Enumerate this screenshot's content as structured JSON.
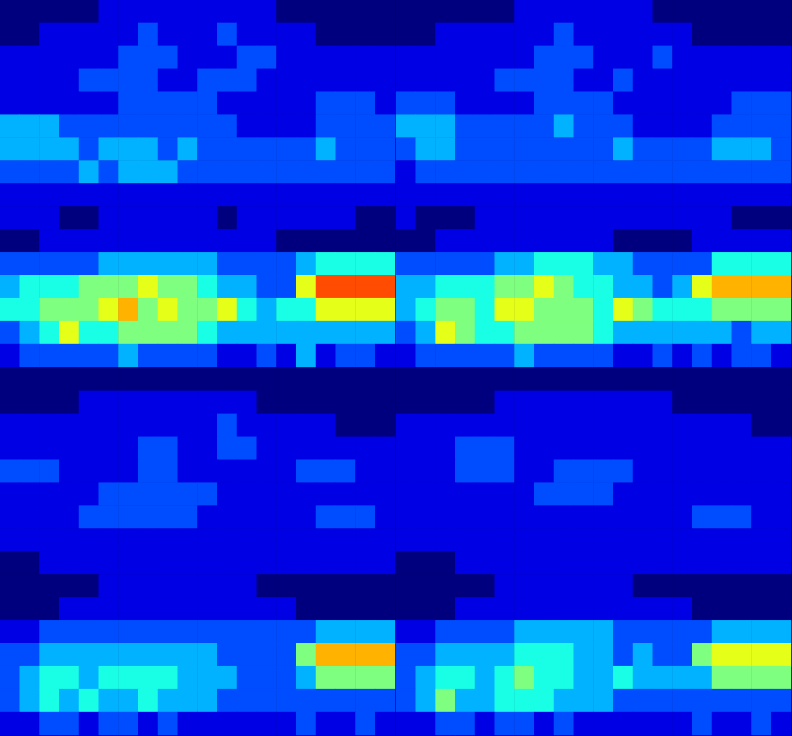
{
  "chart_data": [
    {
      "type": "heatmap",
      "tick_labels": false,
      "color_range": [
        0,
        10
      ],
      "cells": [
        [
          0,
          0,
          0,
          0,
          0,
          1,
          1,
          1,
          1,
          1,
          1,
          1,
          1,
          1,
          0,
          0,
          0,
          0,
          0,
          0
        ],
        [
          0,
          0,
          1,
          1,
          1,
          1,
          1,
          2,
          1,
          1,
          1,
          2,
          1,
          1,
          1,
          1,
          0,
          0,
          0,
          0
        ],
        [
          1,
          1,
          1,
          1,
          1,
          1,
          2,
          2,
          2,
          1,
          1,
          1,
          2,
          2,
          1,
          1,
          1,
          1,
          1,
          1
        ],
        [
          1,
          1,
          1,
          1,
          2,
          2,
          2,
          2,
          1,
          1,
          2,
          2,
          2,
          1,
          1,
          1,
          1,
          1,
          1,
          1
        ],
        [
          1,
          1,
          1,
          1,
          1,
          1,
          2,
          2,
          2,
          2,
          2,
          1,
          1,
          1,
          1,
          1,
          2,
          2,
          2,
          1
        ],
        [
          3,
          3,
          3,
          2,
          2,
          2,
          2,
          2,
          2,
          2,
          2,
          2,
          1,
          1,
          1,
          1,
          2,
          2,
          2,
          2
        ],
        [
          3,
          3,
          3,
          3,
          2,
          3,
          3,
          3,
          2,
          3,
          2,
          2,
          2,
          2,
          2,
          2,
          3,
          2,
          2,
          2
        ],
        [
          2,
          2,
          2,
          2,
          3,
          2,
          3,
          3,
          3,
          2,
          2,
          2,
          2,
          2,
          2,
          2,
          2,
          2,
          2,
          2
        ],
        [
          1,
          1,
          1,
          1,
          1,
          1,
          1,
          1,
          1,
          1,
          1,
          1,
          1,
          1,
          1,
          1,
          1,
          1,
          1,
          1
        ],
        [
          1,
          1,
          1,
          0,
          0,
          1,
          1,
          1,
          1,
          1,
          1,
          0,
          1,
          1,
          1,
          1,
          1,
          1,
          0,
          0
        ],
        [
          0,
          0,
          1,
          1,
          1,
          1,
          1,
          1,
          1,
          1,
          1,
          1,
          1,
          1,
          0,
          0,
          0,
          0,
          0,
          0
        ],
        [
          2,
          2,
          2,
          2,
          2,
          3,
          3,
          3,
          3,
          3,
          3,
          2,
          2,
          2,
          2,
          3,
          4,
          4,
          4,
          4
        ],
        [
          3,
          4,
          4,
          4,
          5,
          5,
          5,
          6,
          5,
          5,
          4,
          3,
          3,
          2,
          2,
          6,
          8,
          8,
          8,
          8
        ],
        [
          4,
          4,
          5,
          5,
          5,
          6,
          7,
          5,
          6,
          5,
          5,
          6,
          4,
          3,
          4,
          4,
          6,
          6,
          6,
          6
        ],
        [
          2,
          3,
          4,
          6,
          4,
          4,
          5,
          5,
          5,
          5,
          4,
          3,
          3,
          3,
          3,
          3,
          3,
          3,
          3,
          3
        ],
        [
          1,
          2,
          2,
          2,
          2,
          2,
          3,
          2,
          2,
          2,
          2,
          1,
          1,
          2,
          1,
          3,
          1,
          2,
          2,
          1
        ]
      ]
    },
    {
      "type": "heatmap",
      "tick_labels": false,
      "color_range": [
        0,
        10
      ],
      "cells": [
        [
          0,
          0,
          0,
          0,
          0,
          0,
          1,
          1,
          1,
          1,
          1,
          1,
          1,
          0,
          0,
          0,
          0,
          0,
          0,
          0
        ],
        [
          0,
          0,
          1,
          1,
          1,
          1,
          1,
          1,
          2,
          1,
          1,
          1,
          1,
          1,
          1,
          0,
          0,
          0,
          0,
          0
        ],
        [
          1,
          1,
          1,
          1,
          1,
          1,
          1,
          2,
          2,
          2,
          1,
          1,
          1,
          2,
          1,
          1,
          1,
          1,
          1,
          1
        ],
        [
          1,
          1,
          1,
          1,
          1,
          2,
          2,
          2,
          2,
          1,
          1,
          2,
          1,
          1,
          1,
          1,
          1,
          1,
          1,
          1
        ],
        [
          2,
          2,
          2,
          1,
          1,
          1,
          1,
          2,
          2,
          2,
          2,
          1,
          1,
          1,
          1,
          1,
          1,
          2,
          2,
          2
        ],
        [
          3,
          3,
          3,
          2,
          2,
          2,
          2,
          2,
          3,
          2,
          2,
          2,
          1,
          1,
          1,
          1,
          2,
          2,
          2,
          2
        ],
        [
          2,
          3,
          3,
          2,
          2,
          2,
          2,
          2,
          2,
          2,
          2,
          3,
          2,
          2,
          2,
          2,
          3,
          3,
          3,
          2
        ],
        [
          1,
          2,
          2,
          2,
          2,
          2,
          2,
          2,
          2,
          2,
          2,
          2,
          2,
          2,
          2,
          2,
          2,
          2,
          2,
          2
        ],
        [
          1,
          1,
          1,
          1,
          1,
          1,
          1,
          1,
          1,
          1,
          1,
          1,
          1,
          1,
          1,
          1,
          1,
          1,
          1,
          1
        ],
        [
          1,
          0,
          0,
          0,
          1,
          1,
          1,
          1,
          1,
          1,
          1,
          1,
          1,
          1,
          1,
          1,
          1,
          0,
          0,
          0
        ],
        [
          0,
          0,
          1,
          1,
          1,
          1,
          1,
          1,
          1,
          1,
          1,
          0,
          0,
          0,
          0,
          1,
          1,
          1,
          1,
          1
        ],
        [
          2,
          2,
          2,
          2,
          2,
          3,
          3,
          4,
          4,
          4,
          3,
          3,
          2,
          2,
          2,
          2,
          4,
          4,
          4,
          4
        ],
        [
          3,
          3,
          4,
          4,
          4,
          5,
          5,
          6,
          5,
          4,
          4,
          3,
          3,
          2,
          3,
          6,
          7,
          7,
          7,
          7
        ],
        [
          3,
          4,
          5,
          5,
          4,
          6,
          6,
          5,
          5,
          5,
          4,
          6,
          5,
          4,
          4,
          4,
          5,
          5,
          5,
          5
        ],
        [
          2,
          3,
          6,
          5,
          4,
          4,
          5,
          5,
          5,
          5,
          4,
          3,
          3,
          3,
          3,
          3,
          3,
          2,
          3,
          3
        ],
        [
          1,
          2,
          2,
          2,
          2,
          2,
          3,
          2,
          2,
          2,
          2,
          1,
          1,
          2,
          1,
          2,
          1,
          2,
          2,
          1
        ]
      ]
    },
    {
      "type": "heatmap",
      "tick_labels": false,
      "color_range": [
        0,
        10
      ],
      "cells": [
        [
          0,
          0,
          0,
          0,
          0,
          0,
          0,
          0,
          0,
          0,
          0,
          0,
          0,
          0,
          0,
          0,
          0,
          0,
          0,
          0
        ],
        [
          0,
          0,
          0,
          0,
          1,
          1,
          1,
          1,
          1,
          1,
          1,
          1,
          1,
          0,
          0,
          0,
          0,
          0,
          0,
          0
        ],
        [
          1,
          1,
          1,
          1,
          1,
          1,
          1,
          1,
          1,
          1,
          1,
          2,
          1,
          1,
          1,
          1,
          1,
          0,
          0,
          0
        ],
        [
          1,
          1,
          1,
          1,
          1,
          1,
          1,
          2,
          2,
          1,
          1,
          2,
          2,
          1,
          1,
          1,
          1,
          1,
          1,
          1
        ],
        [
          2,
          2,
          2,
          1,
          1,
          1,
          1,
          2,
          2,
          1,
          1,
          1,
          1,
          1,
          1,
          2,
          2,
          2,
          1,
          1
        ],
        [
          1,
          1,
          1,
          1,
          1,
          2,
          2,
          2,
          2,
          2,
          2,
          1,
          1,
          1,
          1,
          1,
          1,
          1,
          1,
          1
        ],
        [
          1,
          1,
          1,
          1,
          2,
          2,
          2,
          2,
          2,
          2,
          1,
          1,
          1,
          1,
          1,
          1,
          2,
          2,
          2,
          1
        ],
        [
          1,
          1,
          1,
          1,
          1,
          1,
          1,
          1,
          1,
          1,
          1,
          1,
          1,
          1,
          1,
          1,
          1,
          1,
          1,
          1
        ],
        [
          0,
          0,
          1,
          1,
          1,
          1,
          1,
          1,
          1,
          1,
          1,
          1,
          1,
          1,
          1,
          1,
          1,
          1,
          1,
          1
        ],
        [
          0,
          0,
          0,
          0,
          0,
          1,
          1,
          1,
          1,
          1,
          1,
          1,
          1,
          0,
          0,
          0,
          0,
          0,
          0,
          0
        ],
        [
          0,
          0,
          0,
          1,
          1,
          1,
          1,
          1,
          1,
          1,
          1,
          1,
          1,
          1,
          1,
          0,
          0,
          0,
          0,
          0
        ],
        [
          1,
          1,
          2,
          2,
          2,
          2,
          2,
          2,
          2,
          2,
          2,
          2,
          2,
          2,
          2,
          2,
          3,
          3,
          3,
          3
        ],
        [
          2,
          2,
          3,
          3,
          3,
          3,
          3,
          3,
          3,
          3,
          3,
          2,
          2,
          2,
          2,
          5,
          7,
          7,
          7,
          7
        ],
        [
          2,
          3,
          4,
          4,
          3,
          4,
          4,
          4,
          4,
          3,
          3,
          3,
          2,
          2,
          2,
          3,
          5,
          5,
          5,
          5
        ],
        [
          2,
          3,
          4,
          3,
          4,
          3,
          3,
          4,
          3,
          3,
          3,
          2,
          2,
          2,
          2,
          2,
          2,
          2,
          2,
          2
        ],
        [
          1,
          1,
          2,
          2,
          1,
          2,
          2,
          1,
          2,
          1,
          1,
          1,
          1,
          1,
          1,
          2,
          1,
          1,
          2,
          1
        ]
      ]
    },
    {
      "type": "heatmap",
      "tick_labels": false,
      "color_range": [
        0,
        10
      ],
      "cells": [
        [
          0,
          0,
          0,
          0,
          0,
          0,
          0,
          0,
          0,
          0,
          0,
          0,
          0,
          0,
          0,
          0,
          0,
          0,
          0,
          0
        ],
        [
          0,
          0,
          0,
          0,
          0,
          1,
          1,
          1,
          1,
          1,
          1,
          1,
          1,
          1,
          0,
          0,
          0,
          0,
          0,
          0
        ],
        [
          1,
          1,
          1,
          1,
          1,
          1,
          1,
          1,
          1,
          1,
          1,
          1,
          1,
          1,
          1,
          1,
          1,
          1,
          0,
          0
        ],
        [
          1,
          1,
          1,
          2,
          2,
          2,
          1,
          1,
          1,
          1,
          1,
          1,
          1,
          1,
          1,
          1,
          1,
          1,
          1,
          1
        ],
        [
          1,
          1,
          1,
          2,
          2,
          2,
          1,
          1,
          2,
          2,
          2,
          2,
          1,
          1,
          1,
          1,
          1,
          1,
          1,
          1
        ],
        [
          1,
          1,
          1,
          1,
          1,
          1,
          1,
          2,
          2,
          2,
          2,
          1,
          1,
          1,
          1,
          1,
          1,
          1,
          1,
          1
        ],
        [
          1,
          1,
          1,
          1,
          1,
          1,
          1,
          1,
          1,
          1,
          1,
          1,
          1,
          1,
          1,
          2,
          2,
          2,
          1,
          1
        ],
        [
          1,
          1,
          1,
          1,
          1,
          1,
          1,
          1,
          1,
          1,
          1,
          1,
          1,
          1,
          1,
          1,
          1,
          1,
          1,
          1
        ],
        [
          0,
          0,
          0,
          1,
          1,
          1,
          1,
          1,
          1,
          1,
          1,
          1,
          1,
          1,
          1,
          1,
          1,
          1,
          1,
          1
        ],
        [
          0,
          0,
          0,
          0,
          0,
          1,
          1,
          1,
          1,
          1,
          1,
          1,
          0,
          0,
          0,
          0,
          0,
          0,
          0,
          0
        ],
        [
          0,
          0,
          0,
          1,
          1,
          1,
          1,
          1,
          1,
          1,
          1,
          1,
          1,
          1,
          1,
          0,
          0,
          0,
          0,
          0
        ],
        [
          1,
          1,
          2,
          2,
          2,
          2,
          3,
          3,
          3,
          3,
          3,
          2,
          2,
          2,
          2,
          2,
          3,
          3,
          3,
          3
        ],
        [
          2,
          2,
          3,
          3,
          3,
          3,
          4,
          4,
          4,
          3,
          3,
          2,
          3,
          2,
          2,
          5,
          6,
          6,
          6,
          6
        ],
        [
          2,
          3,
          4,
          4,
          3,
          4,
          5,
          4,
          4,
          3,
          3,
          4,
          3,
          3,
          3,
          3,
          5,
          5,
          5,
          5
        ],
        [
          2,
          3,
          5,
          3,
          3,
          4,
          4,
          4,
          3,
          3,
          3,
          2,
          2,
          2,
          2,
          2,
          2,
          2,
          2,
          2
        ],
        [
          1,
          1,
          2,
          2,
          1,
          2,
          2,
          1,
          2,
          1,
          1,
          1,
          1,
          1,
          1,
          2,
          1,
          1,
          2,
          1
        ]
      ]
    }
  ]
}
